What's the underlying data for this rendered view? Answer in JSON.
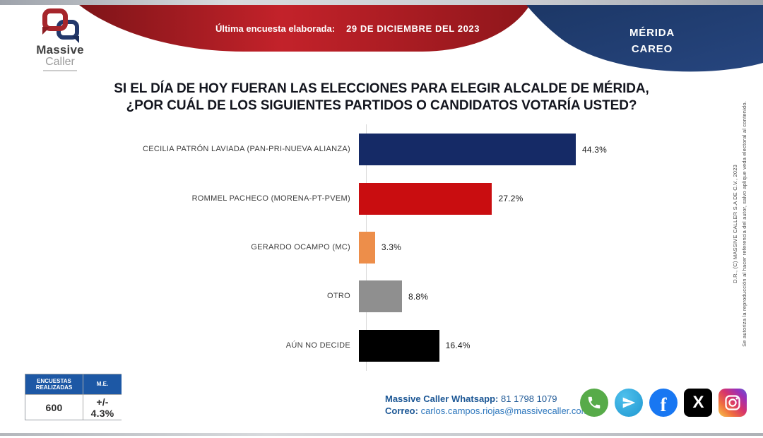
{
  "header": {
    "ribbon_label": "Última encuesta elaborada:",
    "ribbon_date": "29 DE DICIEMBRE DEL 2023",
    "region_line1": "MÉRIDA",
    "region_line2": "CAREO",
    "logo": {
      "line1": "Massive",
      "line2": "Caller"
    }
  },
  "title": {
    "line1": "SI EL DÍA DE HOY FUERAN LAS ELECCIONES PARA ELEGIR ALCALDE DE MÉRIDA,",
    "line2": "¿POR CUÁL DE LOS SIGUIENTES PARTIDOS O CANDIDATOS VOTARÍA USTED?"
  },
  "chart_data": {
    "type": "bar",
    "orientation": "horizontal",
    "title": "SI EL DÍA DE HOY FUERAN LAS ELECCIONES PARA ELEGIR ALCALDE DE MÉRIDA, ¿POR CUÁL DE LOS SIGUIENTES PARTIDOS O CANDIDATOS VOTARÍA USTED?",
    "categories": [
      "CECILIA PATRÓN LAVIADA (PAN-PRI-NUEVA ALIANZA)",
      "ROMMEL PACHECO (MORENA-PT-PVEM)",
      "GERARDO OCAMPO (MC)",
      "OTRO",
      "AÚN NO DECIDE"
    ],
    "values": [
      44.3,
      27.2,
      3.3,
      8.8,
      16.4
    ],
    "value_labels": [
      "44.3%",
      "27.2%",
      "3.3%",
      "8.8%",
      "16.4%"
    ],
    "bar_colors": [
      "#152a66",
      "#c90d10",
      "#ed8e4a",
      "#8f8f8f",
      "#000000"
    ],
    "xlim": [
      0,
      50
    ],
    "grid": false,
    "legend": false
  },
  "stats_table": {
    "headers": [
      "ENCUESTAS REALIZADAS",
      "M.E."
    ],
    "values": [
      "600",
      "+/- 4.3%"
    ],
    "header_bg": "#1d58a5"
  },
  "contact": {
    "whatsapp_label": "Massive Caller Whatsapp:",
    "whatsapp_number": "81 1798 1079",
    "email_label": "Correo:",
    "email": "carlos.campos.riojas@massivecaller.com"
  },
  "legal": {
    "copyright": "D.R., (C) MASSIVE CALLER S.A DE C.V., 2023",
    "disclaimer": "Se autoriza la reproducción al hacer referencia del autor, salvo aplique veda electoral al contenido."
  },
  "colors": {
    "ribbon_red": "#b01b21",
    "ribbon_blue": "#213a6d",
    "accent_blue": "#1d58a5",
    "contact_text": "#1c5795"
  }
}
